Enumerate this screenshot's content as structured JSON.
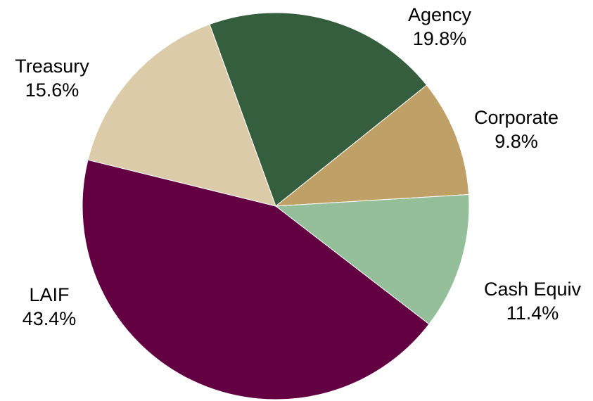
{
  "chart_data": {
    "type": "pie",
    "title": "",
    "slices": [
      {
        "name": "Agency",
        "value": 19.8,
        "label": "19.8%",
        "color": "#345e3e"
      },
      {
        "name": "Corporate",
        "value": 9.8,
        "label": "9.8%",
        "color": "#bfa067"
      },
      {
        "name": "Cash Equiv",
        "value": 11.4,
        "label": "11.4%",
        "color": "#94bf9a"
      },
      {
        "name": "LAIF",
        "value": 43.4,
        "label": "43.4%",
        "color": "#620042"
      },
      {
        "name": "Treasury",
        "value": 15.6,
        "label": "15.6%",
        "color": "#dbcba8"
      }
    ],
    "start_angle_deg": -20,
    "direction": "clockwise",
    "legend": "none"
  }
}
